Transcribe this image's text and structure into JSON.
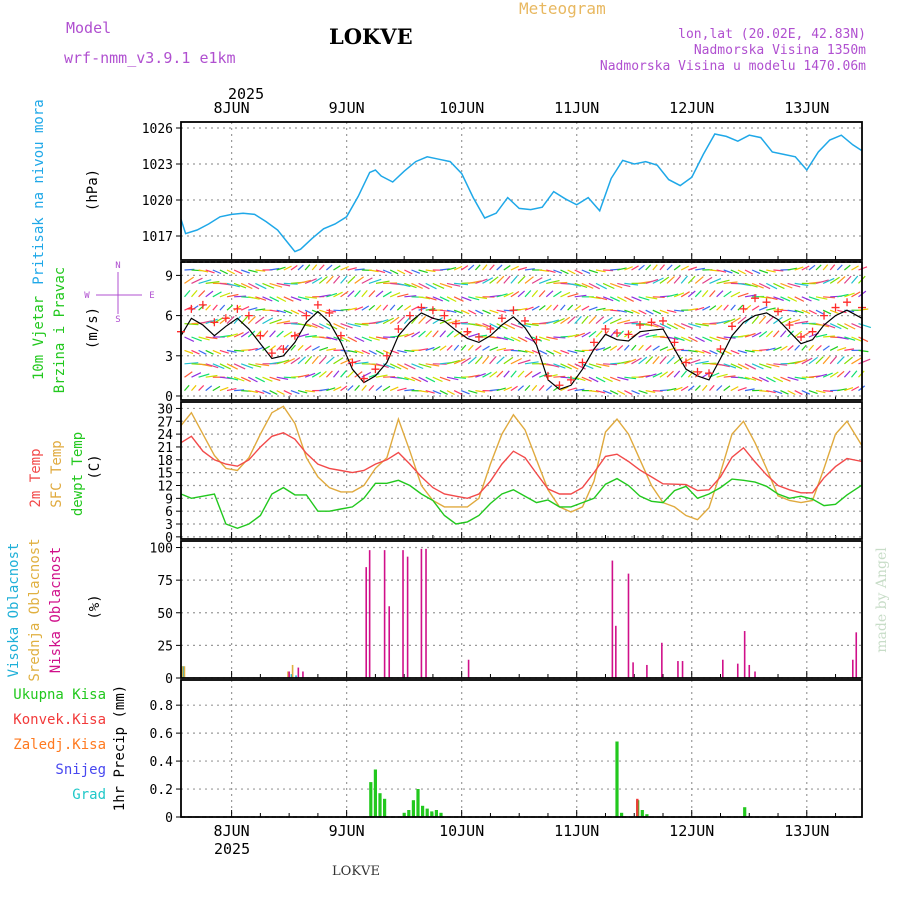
{
  "header": {
    "model_label": "Model",
    "model_name": "wrf-nmm_v3.9.1 e1km",
    "location": "LOKVE",
    "product": "Meteogram",
    "coords": "lon,lat (20.02E, 42.83N)",
    "elevation": "Nadmorska Visina 1350m",
    "model_elevation": "Nadmorska Visina u modelu 1470.06m",
    "footer_location": "LOKVE",
    "watermark": "made by Angel"
  },
  "colors": {
    "pressure": "#1fa8e8",
    "wind_speed": "#000000",
    "gust": "#ff2a2a",
    "temp2m": "#f24a4a",
    "sfc_temp": "#e0aa3e",
    "dewpt": "#22c81e",
    "cloud_high": "#1fb0d8",
    "cloud_mid": "#e0b040",
    "cloud_low": "#d0108a",
    "precip_total": "#22c81e",
    "precip_conv": "#f23a3a",
    "precip_frz": "#ff7a20",
    "snow": "#4848f0",
    "hail": "#20c8c8",
    "title_gold": "#e8b860",
    "purple": "#b050d0"
  },
  "time_axis": {
    "year_top": "2025",
    "year_bottom": "2025",
    "day_labels": [
      "8JUN",
      "9JUN",
      "10JUN",
      "11JUN",
      "12JUN",
      "13JUN"
    ],
    "start_offset_days": -0.44,
    "end_offset_days": 5.48
  },
  "panels": {
    "pressure": {
      "ylabel_main": "Pritisak na nivou mora",
      "unit": "(hPa)",
      "ticks": [
        "1017",
        "1020",
        "1023",
        "1026"
      ]
    },
    "wind": {
      "ylabel_main": "10m Vjetar",
      "ylabel_sub": "Brzina i Pravac",
      "unit": "(m/s)",
      "compass_n": "N",
      "compass_s": "S",
      "compass_w": "W",
      "compass_e": "E",
      "ticks": [
        "0",
        "3",
        "6",
        "9"
      ]
    },
    "temp": {
      "label_2m": "2m Temp",
      "label_sfc": "SFC Temp",
      "label_dewpt": "dewpt Temp",
      "unit": "(C)",
      "ticks": [
        "0",
        "3",
        "6",
        "9",
        "12",
        "15",
        "18",
        "21",
        "24",
        "27",
        "30"
      ]
    },
    "cloud": {
      "label_high": "Visoka Oblacnost",
      "label_mid": "Srednja Oblacnost",
      "label_low": "Niska Oblacnost",
      "unit": "(%)",
      "ticks": [
        "0",
        "25",
        "50",
        "75",
        "100"
      ]
    },
    "precip": {
      "legend_total": "Ukupna Kisa",
      "legend_conv": "Konvek.Kisa",
      "legend_frz": "Zaledj.Kisa",
      "legend_snow": "Snijeg",
      "legend_hail": "Grad",
      "ylabel": "1hr Precip (mm)",
      "ticks": [
        "0",
        "0.2",
        "0.4",
        "0.6",
        "0.8"
      ]
    }
  },
  "chart_data": [
    {
      "type": "line",
      "title": "Pritisak na nivou mora",
      "ylabel": "(hPa)",
      "ylim": [
        1015,
        1026.5
      ],
      "x_unit": "days after 8 Jun 2025 00:00",
      "x": [
        -0.44,
        -0.4,
        -0.3,
        -0.2,
        -0.1,
        0,
        0.1,
        0.2,
        0.3,
        0.4,
        0.5,
        0.55,
        0.6,
        0.7,
        0.8,
        0.9,
        1.0,
        1.1,
        1.2,
        1.25,
        1.3,
        1.4,
        1.5,
        1.6,
        1.7,
        1.8,
        1.9,
        2.0,
        2.1,
        2.2,
        2.3,
        2.4,
        2.5,
        2.6,
        2.7,
        2.8,
        2.9,
        3.0,
        3.1,
        3.2,
        3.3,
        3.4,
        3.5,
        3.6,
        3.7,
        3.8,
        3.9,
        4.0,
        4.1,
        4.2,
        4.3,
        4.4,
        4.5,
        4.6,
        4.7,
        4.8,
        4.9,
        5.0,
        5.1,
        5.2,
        5.3,
        5.4,
        5.48
      ],
      "series": [
        {
          "name": "Pritisak",
          "values": [
            1018.4,
            1017.2,
            1017.5,
            1018.0,
            1018.6,
            1018.8,
            1018.9,
            1018.8,
            1018.2,
            1017.5,
            1016.3,
            1015.7,
            1015.9,
            1016.8,
            1017.6,
            1018.0,
            1018.6,
            1020.3,
            1022.3,
            1022.5,
            1022.0,
            1021.5,
            1022.4,
            1023.2,
            1023.6,
            1023.4,
            1023.2,
            1022.2,
            1020.2,
            1018.5,
            1018.9,
            1020.2,
            1019.3,
            1019.2,
            1019.4,
            1020.7,
            1020.1,
            1019.6,
            1020.2,
            1019.1,
            1021.8,
            1023.3,
            1023.0,
            1023.2,
            1022.9,
            1021.7,
            1021.2,
            1021.9,
            1023.8,
            1025.5,
            1025.3,
            1024.9,
            1025.4,
            1025.2,
            1024.0,
            1023.8,
            1023.6,
            1022.5,
            1024.0,
            1025.0,
            1025.4,
            1024.6,
            1024.1
          ]
        }
      ]
    },
    {
      "type": "line",
      "title": "10m Vjetar Brzina i Pravac",
      "ylabel": "(m/s)",
      "ylim": [
        -0.3,
        10
      ],
      "x_unit": "days after 8 Jun 2025 00:00",
      "x": [
        -0.44,
        -0.35,
        -0.25,
        -0.15,
        -0.05,
        0.05,
        0.15,
        0.25,
        0.35,
        0.45,
        0.55,
        0.65,
        0.75,
        0.85,
        0.95,
        1.05,
        1.15,
        1.25,
        1.35,
        1.45,
        1.55,
        1.65,
        1.75,
        1.85,
        1.95,
        2.05,
        2.15,
        2.25,
        2.35,
        2.45,
        2.55,
        2.65,
        2.75,
        2.85,
        2.95,
        3.05,
        3.15,
        3.25,
        3.35,
        3.45,
        3.55,
        3.65,
        3.75,
        3.85,
        3.95,
        4.05,
        4.15,
        4.25,
        4.35,
        4.45,
        4.55,
        4.65,
        4.75,
        4.85,
        4.95,
        5.05,
        5.15,
        5.25,
        5.35,
        5.48
      ],
      "series": [
        {
          "name": "Brzina",
          "values": [
            4.5,
            5.8,
            5.3,
            4.5,
            5.2,
            5.8,
            5.0,
            3.9,
            2.8,
            3.0,
            4.0,
            5.5,
            6.3,
            5.5,
            4.0,
            2.0,
            1.0,
            1.5,
            2.5,
            4.5,
            5.5,
            6.2,
            5.8,
            5.6,
            4.9,
            4.3,
            4.0,
            4.5,
            5.3,
            5.9,
            5.1,
            3.8,
            1.2,
            0.5,
            0.8,
            2.0,
            3.5,
            4.6,
            4.2,
            4.1,
            4.8,
            4.9,
            5.0,
            3.5,
            2.0,
            1.5,
            1.2,
            2.8,
            4.5,
            5.5,
            6.0,
            6.2,
            5.7,
            4.8,
            3.9,
            4.2,
            5.3,
            6.0,
            6.4,
            5.8
          ]
        },
        {
          "name": "Udar",
          "values": [
            4.8,
            6.5,
            6.8,
            5.5,
            5.8,
            6.5,
            6.0,
            4.5,
            3.2,
            3.5,
            4.5,
            6.0,
            6.8,
            6.2,
            4.5,
            2.5,
            1.3,
            2.0,
            3.0,
            5.0,
            6.0,
            6.6,
            6.4,
            6.0,
            5.4,
            4.8,
            4.4,
            5.0,
            5.8,
            6.4,
            5.6,
            4.2,
            1.5,
            0.8,
            1.2,
            2.5,
            4.0,
            5.0,
            4.7,
            4.6,
            5.3,
            5.5,
            5.6,
            4.0,
            2.5,
            1.8,
            1.7,
            3.5,
            5.2,
            6.5,
            7.3,
            7.0,
            6.3,
            5.3,
            4.4,
            4.8,
            6.0,
            6.6,
            7.0,
            6.6
          ]
        }
      ]
    },
    {
      "type": "line",
      "title": "Temp",
      "ylabel": "(C)",
      "ylim": [
        -0.5,
        31.5
      ],
      "x_unit": "days after 8 Jun 2025 00:00",
      "x": [
        -0.44,
        -0.35,
        -0.25,
        -0.15,
        -0.05,
        0.05,
        0.15,
        0.25,
        0.35,
        0.45,
        0.55,
        0.65,
        0.75,
        0.85,
        0.95,
        1.05,
        1.15,
        1.25,
        1.35,
        1.45,
        1.55,
        1.65,
        1.75,
        1.85,
        1.95,
        2.05,
        2.15,
        2.25,
        2.35,
        2.45,
        2.55,
        2.65,
        2.75,
        2.85,
        2.95,
        3.05,
        3.15,
        3.25,
        3.35,
        3.45,
        3.55,
        3.65,
        3.75,
        3.85,
        3.95,
        4.05,
        4.15,
        4.25,
        4.35,
        4.45,
        4.55,
        4.65,
        4.75,
        4.85,
        4.95,
        5.05,
        5.15,
        5.25,
        5.35,
        5.48
      ],
      "series": [
        {
          "name": "2m Temp",
          "values": [
            22,
            23.5,
            20,
            18,
            17,
            16.5,
            18,
            21,
            23.5,
            24.3,
            22.8,
            19.5,
            17,
            16,
            15.5,
            15,
            15.5,
            17,
            18,
            19.7,
            17,
            14,
            11.5,
            10,
            9.5,
            9,
            10,
            13,
            17,
            20,
            18.5,
            14.8,
            11.2,
            10,
            10,
            11.5,
            15,
            18.8,
            19.3,
            17.6,
            15.6,
            14,
            12.4,
            12.3,
            12.2,
            10.8,
            11,
            14,
            18.6,
            20.8,
            17.5,
            14.5,
            12,
            11,
            10.3,
            10.3,
            13.8,
            16.4,
            18.3,
            17.6
          ]
        },
        {
          "name": "SFC Temp",
          "values": [
            26,
            29,
            24,
            19,
            16,
            15.5,
            18.5,
            24,
            29,
            30.5,
            26.5,
            18.5,
            14,
            11.5,
            10.5,
            10.5,
            12,
            16,
            18.5,
            27.5,
            20,
            12,
            8.5,
            7,
            7,
            7,
            9,
            17,
            24,
            28.5,
            25,
            18,
            11,
            7,
            5.8,
            7,
            13,
            24.5,
            27.5,
            24,
            18,
            12,
            8,
            7,
            5,
            4,
            6.8,
            15,
            24,
            27,
            22,
            16,
            9.6,
            8.5,
            8,
            8.5,
            16,
            24,
            27,
            21.3
          ]
        },
        {
          "name": "dewpt Temp",
          "values": [
            10,
            9,
            9.5,
            10,
            3,
            2,
            3,
            5,
            10,
            11.5,
            9.8,
            9.8,
            6,
            6,
            6.5,
            7,
            9,
            12.5,
            12.5,
            13.2,
            12,
            10,
            8.5,
            5,
            3,
            3.5,
            5,
            7.8,
            10,
            11,
            9.5,
            8,
            8.6,
            7,
            7,
            8,
            9,
            12.3,
            13.6,
            12,
            9.5,
            8.3,
            8,
            10.8,
            11.8,
            9,
            10,
            11.5,
            13.5,
            13.2,
            12.8,
            11.8,
            10,
            9,
            9.5,
            8.8,
            7.3,
            7.6,
            9.8,
            12.1
          ]
        }
      ]
    },
    {
      "type": "bar",
      "title": "Oblacnost",
      "ylabel": "(%)",
      "ylim": [
        0,
        105
      ],
      "x_unit": "days after 8 Jun 2025 00:00",
      "series": [
        {
          "name": "Visoka Oblacnost",
          "x": [
            -0.42,
            0.52,
            0.56
          ],
          "values": [
            9,
            3,
            2
          ]
        },
        {
          "name": "Srednja Oblacnost",
          "x": [
            -0.43,
            -0.41,
            0.49,
            0.53
          ],
          "values": [
            9,
            9,
            5,
            10
          ]
        },
        {
          "name": "Niska Oblacnost",
          "x": [
            0.5,
            0.58,
            0.62,
            1.17,
            1.2,
            1.33,
            1.37,
            1.49,
            1.53,
            1.65,
            1.69,
            2.06,
            3.31,
            3.34,
            3.45,
            3.49,
            3.61,
            3.74,
            3.88,
            3.92,
            4.27,
            4.4,
            4.46,
            4.5,
            4.55,
            5.4,
            5.43
          ],
          "values": [
            5,
            8,
            5,
            85,
            98,
            98,
            55,
            98,
            93,
            99,
            99,
            14,
            90,
            40,
            80,
            12,
            10,
            27,
            13,
            13,
            14,
            11,
            36,
            10,
            5,
            14,
            35
          ]
        }
      ]
    },
    {
      "type": "bar",
      "title": "1hr Precip",
      "ylabel": "1hr Precip (mm)",
      "ylim": [
        0,
        0.98
      ],
      "x_unit": "days after 8 Jun 2025 00:00",
      "series": [
        {
          "name": "Ukupna Kisa",
          "x": [
            1.21,
            1.25,
            1.29,
            1.33,
            1.5,
            1.54,
            1.58,
            1.62,
            1.66,
            1.7,
            1.74,
            1.78,
            1.82,
            3.35,
            3.39,
            3.53,
            3.57,
            3.61,
            4.46
          ],
          "values": [
            0.25,
            0.34,
            0.17,
            0.13,
            0.03,
            0.05,
            0.12,
            0.2,
            0.08,
            0.06,
            0.04,
            0.05,
            0.03,
            0.54,
            0.03,
            0.12,
            0.05,
            0.02,
            0.07
          ]
        },
        {
          "name": "Konvek.Kisa",
          "x": [
            3.53
          ],
          "values": [
            0.13
          ]
        }
      ]
    }
  ]
}
